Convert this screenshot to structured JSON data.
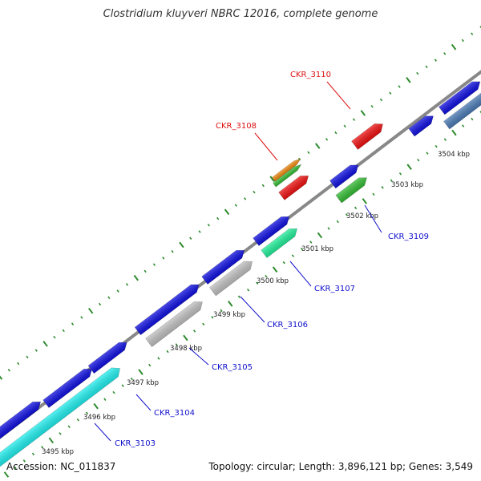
{
  "title": "Clostridium kluyveri NBRC 12016, complete genome",
  "footer": {
    "accession": "Accession: NC_011837",
    "summary": "Topology: circular; Length: 3,896,121 bp; Genes: 3,549"
  },
  "colors": {
    "backbone": "#888888",
    "tick": "#2e8b2e",
    "gene_blue": "#1010e0",
    "gene_red": "#ee1111",
    "gene_orange": "#f08a10",
    "gene_green": "#33bb33",
    "gene_teal": "#22ee99",
    "gene_gray": "#c0c0c0",
    "gene_cyan": "#22eeee",
    "gene_steel": "#4a7ab5",
    "label_blue": "#1010cc",
    "label_red": "#dd1111"
  },
  "tick_labels": [
    {
      "text": "3495 kbp",
      "pos": 3495
    },
    {
      "text": "3496 kbp",
      "pos": 3496
    },
    {
      "text": "3497 kbp",
      "pos": 3497
    },
    {
      "text": "3498 kbp",
      "pos": 3498
    },
    {
      "text": "3499 kbp",
      "pos": 3499
    },
    {
      "text": "3500 kbp",
      "pos": 3500
    },
    {
      "text": "3501 kbp",
      "pos": 3501
    },
    {
      "text": "3502 kbp",
      "pos": 3502
    },
    {
      "text": "3503 kbp",
      "pos": 3503
    },
    {
      "text": "3504 kbp",
      "pos": 3504
    }
  ],
  "gene_labels": [
    {
      "text": "CKR_3103",
      "color": "label_blue"
    },
    {
      "text": "CKR_3104",
      "color": "label_blue"
    },
    {
      "text": "CKR_3105",
      "color": "label_blue"
    },
    {
      "text": "CKR_3106",
      "color": "label_blue"
    },
    {
      "text": "CKR_3107",
      "color": "label_blue"
    },
    {
      "text": "CKR_3108",
      "color": "label_red"
    },
    {
      "text": "CKR_3109",
      "color": "label_blue"
    },
    {
      "text": "CKR_3110",
      "color": "label_red"
    }
  ]
}
